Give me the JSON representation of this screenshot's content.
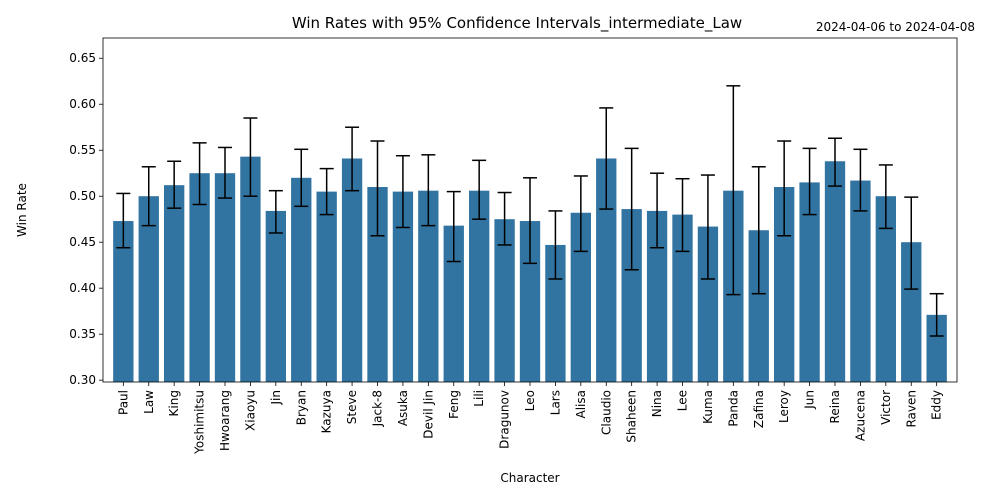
{
  "chart_data": {
    "type": "bar",
    "title": "Win Rates with 95% Confidence Intervals_intermediate_Law",
    "subtitle": "2024-04-06 to 2024-04-08",
    "xlabel": "Character",
    "ylabel": "Win Rate",
    "ylim": [
      0.298,
      0.672
    ],
    "yticks": [
      "0.30",
      "0.35",
      "0.40",
      "0.45",
      "0.50",
      "0.55",
      "0.60",
      "0.65"
    ],
    "grid": false,
    "bar_color": "#3274a1",
    "categories": [
      "Paul",
      "Law",
      "King",
      "Yoshimitsu",
      "Hwoarang",
      "Xiaoyu",
      "Jin",
      "Bryan",
      "Kazuya",
      "Steve",
      "Jack-8",
      "Asuka",
      "Devil Jin",
      "Feng",
      "Lili",
      "Dragunov",
      "Leo",
      "Lars",
      "Alisa",
      "Claudio",
      "Shaheen",
      "Nina",
      "Lee",
      "Kuma",
      "Panda",
      "Zafina",
      "Leroy",
      "Jun",
      "Reina",
      "Azucena",
      "Victor",
      "Raven",
      "Eddy"
    ],
    "values": [
      0.473,
      0.5,
      0.512,
      0.525,
      0.525,
      0.543,
      0.484,
      0.52,
      0.505,
      0.541,
      0.51,
      0.505,
      0.506,
      0.468,
      0.506,
      0.475,
      0.473,
      0.447,
      0.482,
      0.541,
      0.486,
      0.484,
      0.48,
      0.467,
      0.506,
      0.463,
      0.51,
      0.515,
      0.538,
      0.517,
      0.5,
      0.45,
      0.371
    ],
    "ci_lower": [
      0.444,
      0.468,
      0.487,
      0.491,
      0.498,
      0.5,
      0.46,
      0.489,
      0.48,
      0.506,
      0.457,
      0.466,
      0.468,
      0.429,
      0.475,
      0.447,
      0.427,
      0.41,
      0.44,
      0.486,
      0.42,
      0.444,
      0.44,
      0.41,
      0.393,
      0.394,
      0.457,
      0.48,
      0.511,
      0.484,
      0.465,
      0.399,
      0.348
    ],
    "ci_upper": [
      0.503,
      0.532,
      0.538,
      0.558,
      0.553,
      0.585,
      0.506,
      0.551,
      0.53,
      0.575,
      0.56,
      0.544,
      0.545,
      0.505,
      0.539,
      0.504,
      0.52,
      0.484,
      0.522,
      0.596,
      0.552,
      0.525,
      0.519,
      0.523,
      0.62,
      0.532,
      0.56,
      0.552,
      0.563,
      0.551,
      0.534,
      0.499,
      0.394
    ]
  }
}
